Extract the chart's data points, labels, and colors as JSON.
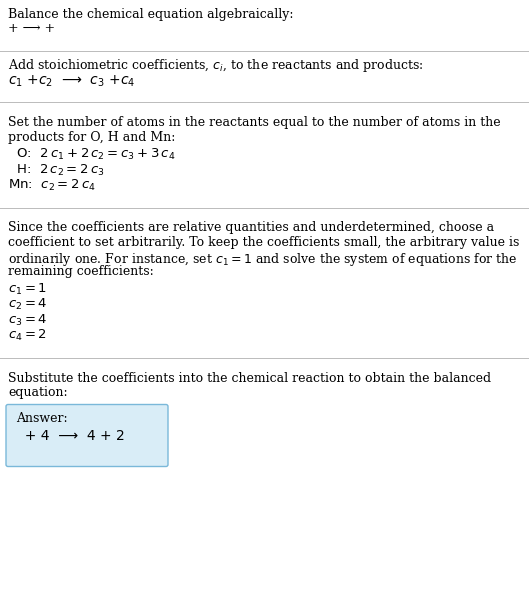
{
  "title": "Balance the chemical equation algebraically:",
  "line1": "+ ⟶ +",
  "section2_title": "Add stoichiometric coefficients, $c_i$, to the reactants and products:",
  "section2_eq": "$c_1$ +$c_2$  ⟶  $c_3$ +$c_4$",
  "section3_title_line1": "Set the number of atoms in the reactants equal to the number of atoms in the",
  "section3_title_line2": "products for O, H and Mn:",
  "section3_lines": [
    "  O:  $2\\,c_1 + 2\\,c_2 = c_3 + 3\\,c_4$",
    "  H:  $2\\,c_2 = 2\\,c_3$",
    "Mn:  $c_2 = 2\\,c_4$"
  ],
  "section4_intro_lines": [
    "Since the coefficients are relative quantities and underdetermined, choose a",
    "coefficient to set arbitrarily. To keep the coefficients small, the arbitrary value is",
    "ordinarily one. For instance, set $c_1 = 1$ and solve the system of equations for the",
    "remaining coefficients:"
  ],
  "section4_lines": [
    "$c_1 = 1$",
    "$c_2 = 4$",
    "$c_3 = 4$",
    "$c_4 = 2$"
  ],
  "section5_title_line1": "Substitute the coefficients into the chemical reaction to obtain the balanced",
  "section5_title_line2": "equation:",
  "answer_label": "Answer:",
  "answer_eq": "  + 4  ⟶  4 + 2",
  "bg_color": "#ffffff",
  "box_color": "#d9edf7",
  "box_border_color": "#7ab8d9",
  "text_color": "#000000",
  "line_color": "#bbbbbb",
  "font_size": 9.0
}
